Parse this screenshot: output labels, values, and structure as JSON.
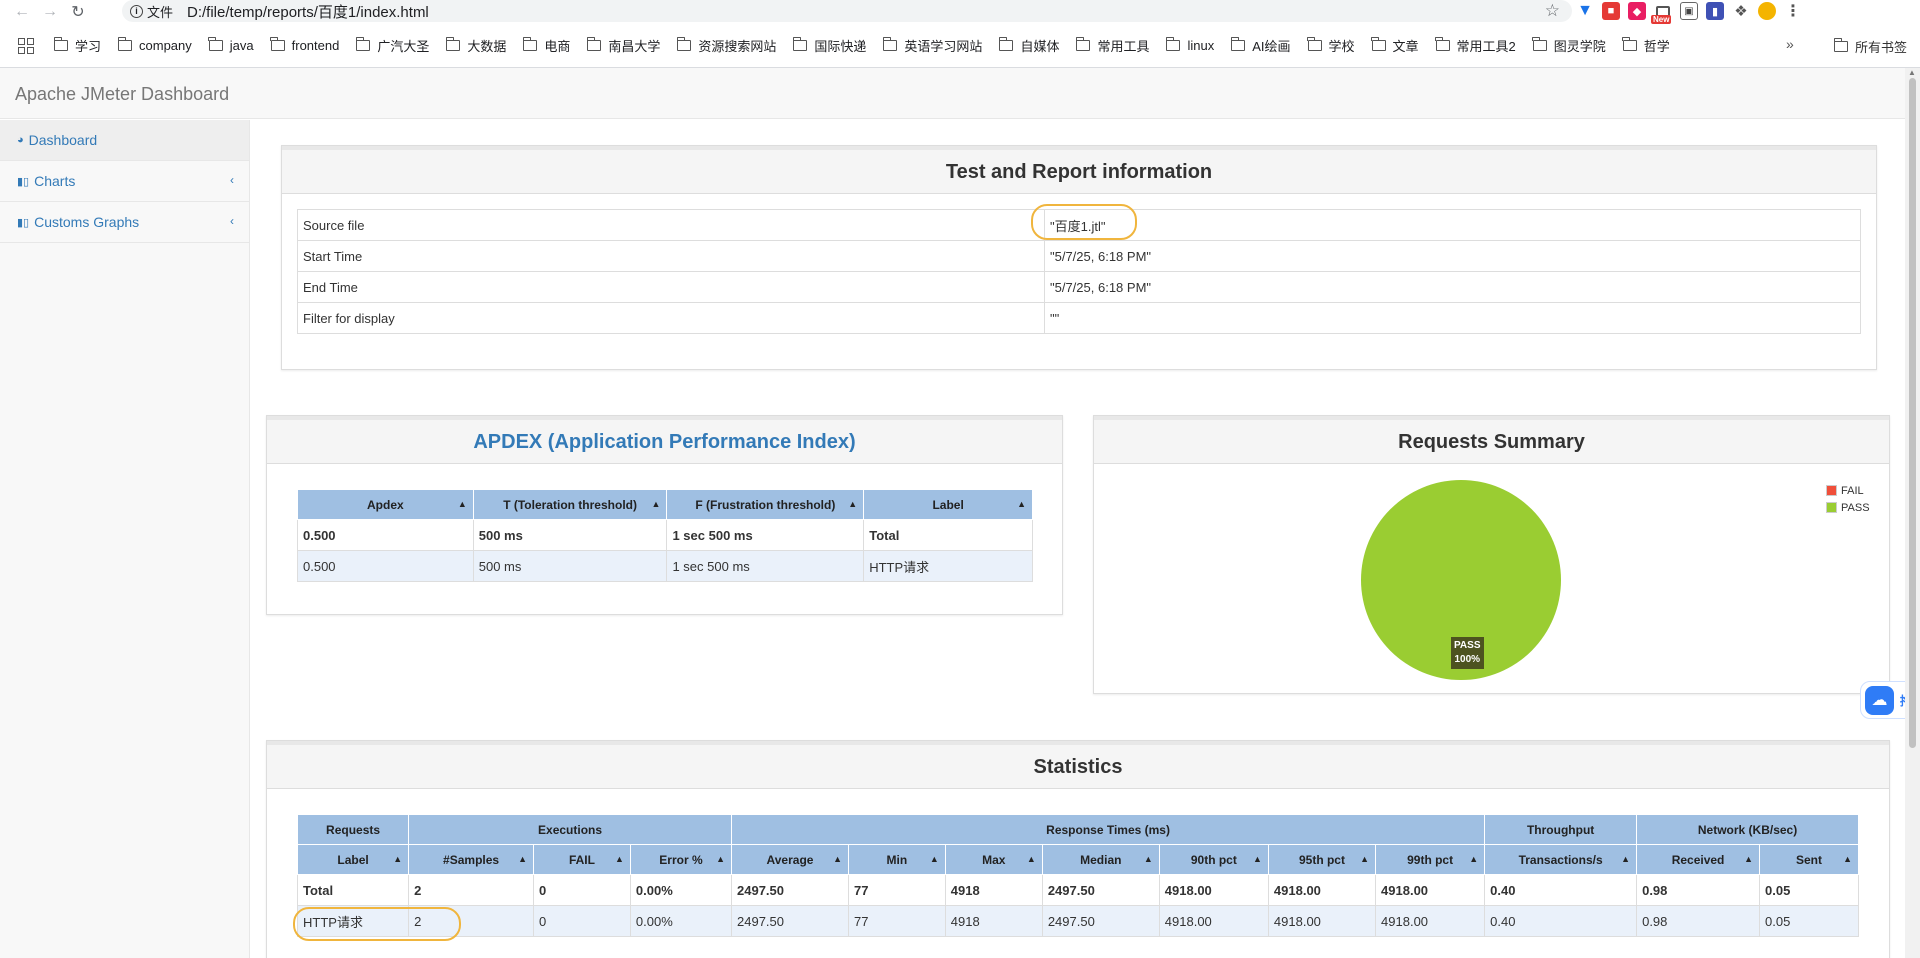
{
  "browser": {
    "info_label": "文件",
    "url": "D:/file/temp/reports/百度1/index.html",
    "bookmarks": [
      "学习",
      "company",
      "java",
      "frontend",
      "广汽大圣",
      "大数据",
      "电商",
      "南昌大学",
      "资源搜索网站",
      "国际快递",
      "英语学习网站",
      "自媒体",
      "常用工具",
      "linux",
      "AI绘画",
      "学校",
      "文章",
      "常用工具2",
      "图灵学院",
      "哲学"
    ],
    "more_bookmarks": "»",
    "all_bookmarks": "所有书签",
    "ext_new_badge": "New"
  },
  "app": {
    "brand": "Apache JMeter Dashboard"
  },
  "sidebar": {
    "items": [
      {
        "label": "Dashboard",
        "icon": "dashboard-icon"
      },
      {
        "label": "Charts",
        "icon": "bar-chart-icon"
      },
      {
        "label": "Customs Graphs",
        "icon": "bar-chart-icon"
      }
    ]
  },
  "test_info": {
    "title": "Test and Report information",
    "rows": [
      {
        "key": "Source file",
        "value": "\"百度1.jtl\""
      },
      {
        "key": "Start Time",
        "value": "\"5/7/25, 6:18 PM\""
      },
      {
        "key": "End Time",
        "value": "\"5/7/25, 6:18 PM\""
      },
      {
        "key": "Filter for display",
        "value": "\"\""
      }
    ]
  },
  "apdex": {
    "title": "APDEX (Application Performance Index)",
    "headers": [
      "Apdex",
      "T (Toleration threshold)",
      "F (Frustration threshold)",
      "Label"
    ],
    "rows": [
      [
        "0.500",
        "500 ms",
        "1 sec 500 ms",
        "Total"
      ],
      [
        "0.500",
        "500 ms",
        "1 sec 500 ms",
        "HTTP请求"
      ]
    ]
  },
  "summary": {
    "title": "Requests Summary",
    "legend": [
      {
        "name": "FAIL",
        "color": "#f04f3a"
      },
      {
        "name": "PASS",
        "color": "#9acd32"
      }
    ],
    "slice_label": "PASS",
    "slice_pct": "100%"
  },
  "chart_data": {
    "type": "pie",
    "title": "Requests Summary",
    "categories": [
      "FAIL",
      "PASS"
    ],
    "values": [
      0,
      100
    ],
    "colors": [
      "#f04f3a",
      "#9acd32"
    ],
    "legend": "top-right"
  },
  "statistics": {
    "title": "Statistics",
    "groups": [
      "Requests",
      "Executions",
      "Response Times (ms)",
      "Throughput",
      "Network (KB/sec)"
    ],
    "headers": [
      "Label",
      "#Samples",
      "FAIL",
      "Error %",
      "Average",
      "Min",
      "Max",
      "Median",
      "90th pct",
      "95th pct",
      "99th pct",
      "Transactions/s",
      "Received",
      "Sent"
    ],
    "rows": [
      [
        "Total",
        "2",
        "0",
        "0.00%",
        "2497.50",
        "77",
        "4918",
        "2497.50",
        "4918.00",
        "4918.00",
        "4918.00",
        "0.40",
        "0.98",
        "0.05"
      ],
      [
        "HTTP请求",
        "2",
        "0",
        "0.00%",
        "2497.50",
        "77",
        "4918",
        "2497.50",
        "4918.00",
        "4918.00",
        "4918.00",
        "0.40",
        "0.98",
        "0.05"
      ]
    ]
  },
  "floating": {
    "label": "拖"
  }
}
